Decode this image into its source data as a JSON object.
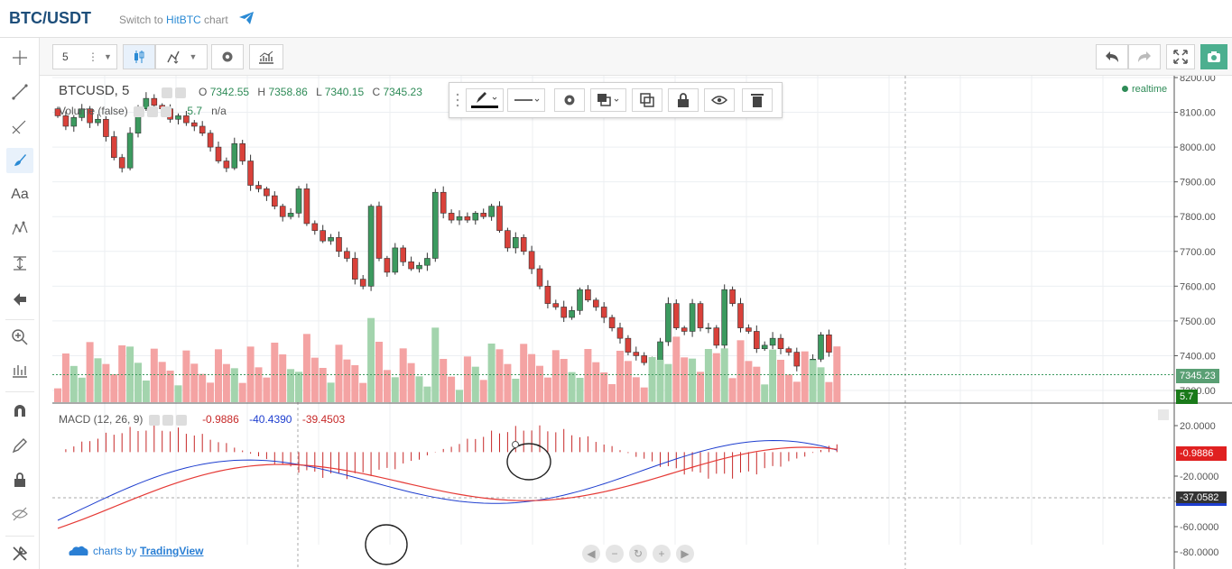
{
  "header": {
    "pair": "BTC/USDT",
    "switch_prefix": "Switch to ",
    "switch_link": "HitBTC",
    "switch_suffix": " chart"
  },
  "toolbar": {
    "interval": "5"
  },
  "chart": {
    "symbol": "BTCUSD, 5",
    "ohlc": {
      "o_label": "O",
      "o": "7342.55",
      "h_label": "H",
      "h": "7358.86",
      "l_label": "L",
      "l": "7340.15",
      "c_label": "C",
      "c": "7345.23"
    },
    "volume_label": "Volume (false)",
    "volume_value": "5.7",
    "volume_na": "n/a",
    "realtime": "realtime",
    "price_axis": [
      "8200.00",
      "8100.00",
      "8000.00",
      "7900.00",
      "7800.00",
      "7700.00",
      "7600.00",
      "7500.00",
      "7400.00",
      "7300.00"
    ],
    "last_price": "7345.23",
    "last_volume": "5.7",
    "macd_label": "MACD (12, 26, 9)",
    "macd_values": {
      "hist": "-0.9886",
      "macd": "-40.4390",
      "signal": "-39.4503"
    },
    "macd_axis": [
      "20.0000",
      "-20.0000",
      "-40.0000",
      "-60.0000",
      "-80.0000"
    ],
    "macd_tag_hist": "-0.9886",
    "macd_tag_line": "-37.0582",
    "credit_prefix": "charts by ",
    "credit_link": "TradingView",
    "colors": {
      "up": "#3c9a5f",
      "down": "#d9413a",
      "vol_up": "#a3d4ad",
      "vol_down": "#f4a3a3",
      "macd": "#1e3ecf",
      "signal": "#e53935"
    }
  }
}
